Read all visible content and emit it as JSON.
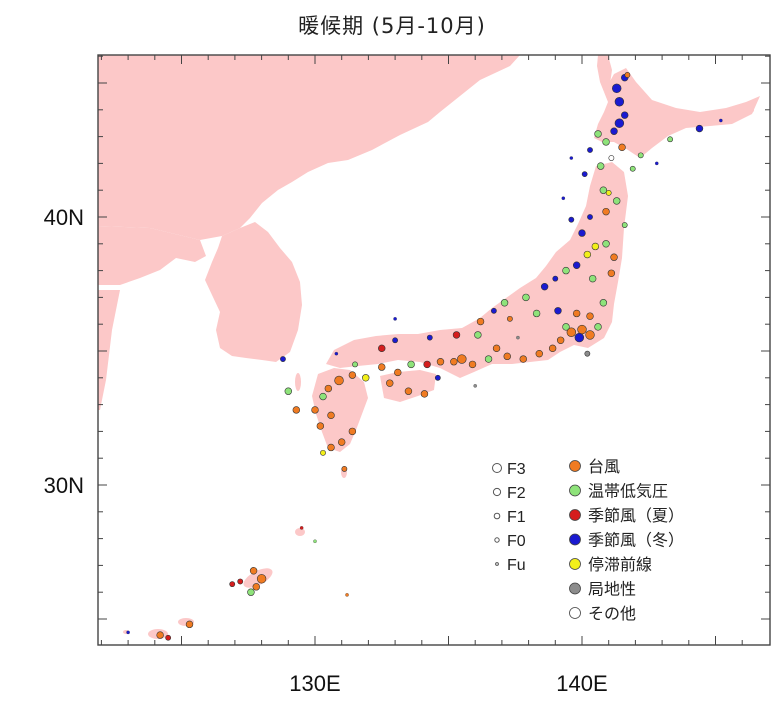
{
  "title": "暖候期 (5月-10月)",
  "map": {
    "lon_range": [
      122,
      146
    ],
    "lat_range": [
      24,
      46
    ],
    "lon_ticks": [
      {
        "value": 130,
        "label": "130E"
      },
      {
        "value": 140,
        "label": "140E"
      }
    ],
    "lat_ticks": [
      {
        "value": 40,
        "label": "40N"
      },
      {
        "value": 30,
        "label": "30N"
      }
    ],
    "land_color": "#fcc8c8",
    "sea_color": "#ffffff"
  },
  "legend": {
    "intensity": [
      {
        "label": "F3",
        "size": 4
      },
      {
        "label": "F2",
        "size": 3
      },
      {
        "label": "F1",
        "size": 2.2
      },
      {
        "label": "F0",
        "size": 1.6
      },
      {
        "label": "Fu",
        "size": 1
      }
    ],
    "causes": [
      {
        "key": "typhoon",
        "label": "台風",
        "color": "#f07b22"
      },
      {
        "key": "extratropical",
        "label": "温帯低気圧",
        "color": "#8ee37a"
      },
      {
        "key": "monsoon_summer",
        "label": "季節風（夏）",
        "color": "#d51d1d"
      },
      {
        "key": "monsoon_winter",
        "label": "季節風（冬）",
        "color": "#1a1ad0"
      },
      {
        "key": "stationary_front",
        "label": "停滞前線",
        "color": "#f2ef1a"
      },
      {
        "key": "local",
        "label": "局地性",
        "color": "#8c8c8c"
      },
      {
        "key": "other",
        "label": "その他",
        "color": "#ffffff"
      }
    ]
  },
  "events": [
    [
      141.6,
      45.2,
      "monsoon_winter",
      2
    ],
    [
      141.3,
      44.8,
      "monsoon_winter",
      3
    ],
    [
      141.4,
      44.3,
      "monsoon_winter",
      3
    ],
    [
      141.6,
      43.8,
      "monsoon_winter",
      2
    ],
    [
      141.4,
      43.5,
      "monsoon_winter",
      3
    ],
    [
      141.2,
      43.2,
      "monsoon_winter",
      2
    ],
    [
      140.9,
      42.8,
      "extratropical",
      2
    ],
    [
      141.5,
      42.6,
      "typhoon",
      2
    ],
    [
      142.2,
      42.3,
      "extratropical",
      1
    ],
    [
      143.3,
      42.9,
      "extratropical",
      1
    ],
    [
      144.4,
      43.3,
      "monsoon_winter",
      2
    ],
    [
      145.2,
      43.6,
      "monsoon_winter",
      0
    ],
    [
      140.6,
      43.1,
      "extratropical",
      2
    ],
    [
      140.3,
      42.5,
      "monsoon_winter",
      1
    ],
    [
      140.7,
      41.9,
      "extratropical",
      2
    ],
    [
      140.1,
      41.6,
      "monsoon_winter",
      1
    ],
    [
      141.7,
      45.3,
      "typhoon",
      1
    ],
    [
      142.8,
      42.0,
      "monsoon_winter",
      0
    ],
    [
      140.8,
      41.0,
      "extratropical",
      2
    ],
    [
      141.3,
      40.6,
      "extratropical",
      2
    ],
    [
      140.9,
      40.2,
      "typhoon",
      2
    ],
    [
      140.3,
      40.0,
      "monsoon_winter",
      1
    ],
    [
      140.0,
      39.4,
      "monsoon_winter",
      2
    ],
    [
      141.6,
      39.7,
      "extratropical",
      1
    ],
    [
      140.9,
      39.0,
      "extratropical",
      2
    ],
    [
      141.2,
      38.5,
      "typhoon",
      2
    ],
    [
      140.2,
      38.6,
      "stationary_front",
      2
    ],
    [
      139.8,
      38.2,
      "monsoon_winter",
      2
    ],
    [
      139.4,
      38.0,
      "extratropical",
      2
    ],
    [
      140.4,
      37.7,
      "extratropical",
      2
    ],
    [
      139.0,
      37.7,
      "monsoon_winter",
      1
    ],
    [
      138.6,
      37.4,
      "monsoon_winter",
      2
    ],
    [
      137.9,
      37.0,
      "extratropical",
      2
    ],
    [
      137.1,
      36.8,
      "extratropical",
      2
    ],
    [
      136.7,
      36.5,
      "monsoon_winter",
      1
    ],
    [
      136.2,
      36.1,
      "typhoon",
      2
    ],
    [
      139.6,
      35.7,
      "typhoon",
      3
    ],
    [
      140.0,
      35.8,
      "typhoon",
      3
    ],
    [
      139.9,
      35.5,
      "monsoon_winter",
      3
    ],
    [
      140.3,
      35.6,
      "typhoon",
      3
    ],
    [
      140.6,
      35.9,
      "extratropical",
      2
    ],
    [
      139.4,
      35.9,
      "extratropical",
      2
    ],
    [
      139.8,
      36.4,
      "typhoon",
      2
    ],
    [
      140.3,
      36.3,
      "typhoon",
      2
    ],
    [
      139.2,
      35.4,
      "typhoon",
      2
    ],
    [
      138.9,
      35.1,
      "typhoon",
      2
    ],
    [
      138.4,
      34.9,
      "typhoon",
      2
    ],
    [
      137.8,
      34.7,
      "typhoon",
      2
    ],
    [
      137.2,
      34.8,
      "typhoon",
      2
    ],
    [
      136.8,
      35.1,
      "typhoon",
      2
    ],
    [
      136.5,
      34.7,
      "extratropical",
      2
    ],
    [
      135.9,
      34.5,
      "typhoon",
      2
    ],
    [
      135.5,
      34.7,
      "typhoon",
      3
    ],
    [
      135.2,
      34.6,
      "typhoon",
      2
    ],
    [
      134.7,
      34.6,
      "typhoon",
      2
    ],
    [
      134.2,
      34.5,
      "monsoon_summer",
      2
    ],
    [
      133.6,
      34.5,
      "extratropical",
      2
    ],
    [
      133.1,
      34.2,
      "typhoon",
      2
    ],
    [
      132.5,
      34.4,
      "typhoon",
      2
    ],
    [
      131.9,
      34.0,
      "stationary_front",
      2
    ],
    [
      131.4,
      34.1,
      "typhoon",
      2
    ],
    [
      130.9,
      33.9,
      "typhoon",
      3
    ],
    [
      130.5,
      33.6,
      "typhoon",
      2
    ],
    [
      130.3,
      33.3,
      "extratropical",
      2
    ],
    [
      130.0,
      32.8,
      "typhoon",
      2
    ],
    [
      130.6,
      32.6,
      "typhoon",
      2
    ],
    [
      130.2,
      32.2,
      "typhoon",
      2
    ],
    [
      131.4,
      32.0,
      "typhoon",
      2
    ],
    [
      131.0,
      31.6,
      "typhoon",
      2
    ],
    [
      130.6,
      31.4,
      "typhoon",
      2
    ],
    [
      130.3,
      31.2,
      "stationary_front",
      1
    ],
    [
      131.1,
      30.6,
      "typhoon",
      1
    ],
    [
      129.3,
      32.8,
      "typhoon",
      2
    ],
    [
      129.0,
      33.5,
      "extratropical",
      2
    ],
    [
      132.8,
      33.8,
      "typhoon",
      2
    ],
    [
      133.5,
      33.5,
      "typhoon",
      2
    ],
    [
      134.1,
      33.4,
      "typhoon",
      2
    ],
    [
      134.6,
      34.0,
      "monsoon_winter",
      1
    ],
    [
      133.0,
      35.4,
      "monsoon_winter",
      1
    ],
    [
      134.3,
      35.5,
      "monsoon_winter",
      1
    ],
    [
      135.3,
      35.6,
      "monsoon_summer",
      2
    ],
    [
      132.5,
      35.1,
      "monsoon_summer",
      2
    ],
    [
      131.5,
      34.5,
      "extratropical",
      1
    ],
    [
      136.1,
      35.6,
      "extratropical",
      2
    ],
    [
      138.3,
      36.4,
      "extratropical",
      2
    ],
    [
      137.3,
      36.2,
      "typhoon",
      1
    ],
    [
      139.1,
      36.5,
      "monsoon_winter",
      2
    ],
    [
      141.1,
      37.9,
      "typhoon",
      2
    ],
    [
      140.8,
      36.8,
      "extratropical",
      2
    ],
    [
      140.5,
      38.9,
      "stationary_front",
      2
    ],
    [
      141.0,
      40.9,
      "stationary_front",
      1
    ],
    [
      141.9,
      41.8,
      "extratropical",
      1
    ],
    [
      128.0,
      26.5,
      "typhoon",
      3
    ],
    [
      127.8,
      26.2,
      "typhoon",
      2
    ],
    [
      127.6,
      26.0,
      "extratropical",
      2
    ],
    [
      127.7,
      26.8,
      "typhoon",
      2
    ],
    [
      126.9,
      26.3,
      "monsoon_summer",
      1
    ],
    [
      127.2,
      26.4,
      "monsoon_summer",
      1
    ],
    [
      125.3,
      24.8,
      "typhoon",
      2
    ],
    [
      124.2,
      24.4,
      "typhoon",
      2
    ],
    [
      124.5,
      24.3,
      "monsoon_summer",
      1
    ],
    [
      123.0,
      24.5,
      "monsoon_winter",
      0
    ],
    [
      131.2,
      25.9,
      "typhoon",
      0
    ],
    [
      129.5,
      28.4,
      "monsoon_summer",
      0
    ],
    [
      130.0,
      27.9,
      "extratropical",
      0
    ],
    [
      128.8,
      34.7,
      "monsoon_winter",
      1
    ],
    [
      133.0,
      36.2,
      "monsoon_winter",
      0
    ],
    [
      130.8,
      34.9,
      "monsoon_winter",
      0
    ],
    [
      139.6,
      42.2,
      "monsoon_winter",
      0
    ],
    [
      139.3,
      40.7,
      "monsoon_winter",
      0
    ],
    [
      139.6,
      39.9,
      "monsoon_winter",
      1
    ],
    [
      140.2,
      34.9,
      "local",
      1
    ],
    [
      137.6,
      35.5,
      "local",
      0
    ],
    [
      136.0,
      33.7,
      "local",
      0
    ],
    [
      141.1,
      42.2,
      "other",
      1
    ]
  ]
}
